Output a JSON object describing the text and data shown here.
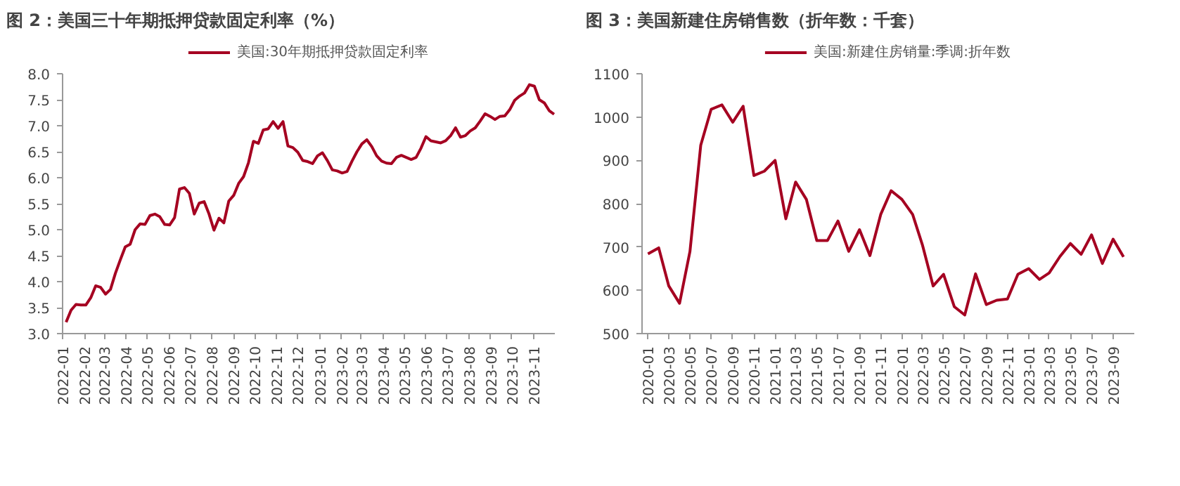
{
  "chart_data": [
    {
      "type": "line",
      "title": "图 2：美国三十年期抵押贷款固定利率（%）",
      "legend": "top",
      "x": [
        "2022-01-06",
        "2022-01-13",
        "2022-01-20",
        "2022-01-27",
        "2022-02-03",
        "2022-02-10",
        "2022-02-17",
        "2022-02-24",
        "2022-03-03",
        "2022-03-10",
        "2022-03-17",
        "2022-03-24",
        "2022-03-31",
        "2022-04-07",
        "2022-04-14",
        "2022-04-21",
        "2022-04-28",
        "2022-05-05",
        "2022-05-12",
        "2022-05-19",
        "2022-05-26",
        "2022-06-02",
        "2022-06-09",
        "2022-06-16",
        "2022-06-23",
        "2022-06-30",
        "2022-07-07",
        "2022-07-14",
        "2022-07-21",
        "2022-07-28",
        "2022-08-04",
        "2022-08-11",
        "2022-08-18",
        "2022-08-25",
        "2022-09-01",
        "2022-09-08",
        "2022-09-15",
        "2022-09-22",
        "2022-09-29",
        "2022-10-06",
        "2022-10-13",
        "2022-10-20",
        "2022-10-27",
        "2022-11-03",
        "2022-11-10",
        "2022-11-17",
        "2022-11-24",
        "2022-12-01",
        "2022-12-08",
        "2022-12-15",
        "2022-12-22",
        "2022-12-29",
        "2023-01-05",
        "2023-01-12",
        "2023-01-19",
        "2023-01-26",
        "2023-02-02",
        "2023-02-09",
        "2023-02-16",
        "2023-02-23",
        "2023-03-02",
        "2023-03-09",
        "2023-03-16",
        "2023-03-23",
        "2023-03-30",
        "2023-04-06",
        "2023-04-13",
        "2023-04-20",
        "2023-04-27",
        "2023-05-04",
        "2023-05-11",
        "2023-05-18",
        "2023-05-25",
        "2023-06-01",
        "2023-06-08",
        "2023-06-15",
        "2023-06-22",
        "2023-06-29",
        "2023-07-06",
        "2023-07-13",
        "2023-07-20",
        "2023-07-27",
        "2023-08-03",
        "2023-08-10",
        "2023-08-17",
        "2023-08-24",
        "2023-08-31",
        "2023-09-07",
        "2023-09-14",
        "2023-09-21",
        "2023-09-28",
        "2023-10-05",
        "2023-10-12",
        "2023-10-19",
        "2023-10-26",
        "2023-11-02",
        "2023-11-09",
        "2023-11-16",
        "2023-11-23",
        "2023-11-30"
      ],
      "series": [
        {
          "name": "美国:30年期抵押贷款固定利率",
          "color": "#a50021",
          "values": [
            3.22,
            3.45,
            3.56,
            3.55,
            3.55,
            3.69,
            3.92,
            3.89,
            3.76,
            3.85,
            4.16,
            4.42,
            4.67,
            4.72,
            5.0,
            5.11,
            5.1,
            5.27,
            5.3,
            5.25,
            5.1,
            5.09,
            5.23,
            5.78,
            5.81,
            5.7,
            5.3,
            5.51,
            5.54,
            5.3,
            4.99,
            5.22,
            5.13,
            5.55,
            5.66,
            5.89,
            6.02,
            6.29,
            6.7,
            6.66,
            6.92,
            6.94,
            7.08,
            6.95,
            7.08,
            6.61,
            6.58,
            6.49,
            6.33,
            6.31,
            6.27,
            6.42,
            6.48,
            6.33,
            6.15,
            6.13,
            6.09,
            6.12,
            6.32,
            6.5,
            6.65,
            6.73,
            6.6,
            6.42,
            6.32,
            6.28,
            6.27,
            6.39,
            6.43,
            6.39,
            6.35,
            6.39,
            6.57,
            6.79,
            6.71,
            6.69,
            6.67,
            6.71,
            6.81,
            6.96,
            6.78,
            6.81,
            6.9,
            6.96,
            7.09,
            7.23,
            7.18,
            7.12,
            7.18,
            7.19,
            7.31,
            7.49,
            7.57,
            7.63,
            7.79,
            7.76,
            7.5,
            7.44,
            7.29,
            7.22
          ]
        }
      ],
      "xlim": [
        "2022-01-01",
        "2023-12-01"
      ],
      "xticks": [
        "2022-01",
        "2022-02",
        "2022-03",
        "2022-04",
        "2022-05",
        "2022-06",
        "2022-07",
        "2022-08",
        "2022-09",
        "2022-10",
        "2022-11",
        "2022-12",
        "2023-01",
        "2023-02",
        "2023-03",
        "2023-04",
        "2023-05",
        "2023-06",
        "2023-07",
        "2023-08",
        "2023-09",
        "2023-10",
        "2023-11"
      ],
      "ylim": [
        3.0,
        8.0
      ],
      "yticks": [
        {
          "value": 3.0,
          "label": "3.0"
        },
        {
          "value": 3.5,
          "label": "3.5"
        },
        {
          "value": 4.0,
          "label": "4.0"
        },
        {
          "value": 4.5,
          "label": "4.5"
        },
        {
          "value": 5.0,
          "label": "5.0"
        },
        {
          "value": 5.5,
          "label": "5.5"
        },
        {
          "value": 6.0,
          "label": "6.0"
        },
        {
          "value": 6.5,
          "label": "6.5"
        },
        {
          "value": 7.0,
          "label": "7.0"
        },
        {
          "value": 7.5,
          "label": "7.5"
        },
        {
          "value": 8.0,
          "label": "8.0"
        }
      ]
    },
    {
      "type": "line",
      "title": "图 3：美国新建住房销售数（折年数：千套）",
      "legend": "top",
      "x": [
        "2020-01",
        "2020-02",
        "2020-03",
        "2020-04",
        "2020-05",
        "2020-06",
        "2020-07",
        "2020-08",
        "2020-09",
        "2020-10",
        "2020-11",
        "2020-12",
        "2021-01",
        "2021-02",
        "2021-03",
        "2021-04",
        "2021-05",
        "2021-06",
        "2021-07",
        "2021-08",
        "2021-09",
        "2021-10",
        "2021-11",
        "2021-12",
        "2022-01",
        "2022-02",
        "2022-03",
        "2022-04",
        "2022-05",
        "2022-06",
        "2022-07",
        "2022-08",
        "2022-09",
        "2022-10",
        "2022-11",
        "2022-12",
        "2023-01",
        "2023-02",
        "2023-03",
        "2023-04",
        "2023-05",
        "2023-06",
        "2023-07",
        "2023-08",
        "2023-09",
        "2023-10"
      ],
      "series": [
        {
          "name": "美国:新建住房销量:季调:折年数",
          "color": "#a50021",
          "values": [
            684,
            698,
            610,
            570,
            690,
            935,
            1018,
            1028,
            988,
            1025,
            865,
            875,
            900,
            765,
            850,
            810,
            715,
            715,
            760,
            690,
            740,
            680,
            775,
            830,
            810,
            775,
            705,
            610,
            637,
            562,
            543,
            638,
            567,
            577,
            580,
            637,
            650,
            625,
            640,
            678,
            708,
            683,
            728,
            662,
            718,
            677
          ]
        }
      ],
      "xlim": [
        "2019-12-15",
        "2023-11-01"
      ],
      "xticks": [
        "2020-01",
        "2020-03",
        "2020-05",
        "2020-07",
        "2020-09",
        "2020-11",
        "2021-01",
        "2021-03",
        "2021-05",
        "2021-07",
        "2021-09",
        "2021-11",
        "2022-01",
        "2022-03",
        "2022-05",
        "2022-07",
        "2022-09",
        "2022-11",
        "2023-01",
        "2023-03",
        "2023-05",
        "2023-07",
        "2023-09"
      ],
      "ylim": [
        500,
        1100
      ],
      "yticks": [
        500,
        600,
        700,
        800,
        900,
        1000,
        1100
      ]
    }
  ]
}
